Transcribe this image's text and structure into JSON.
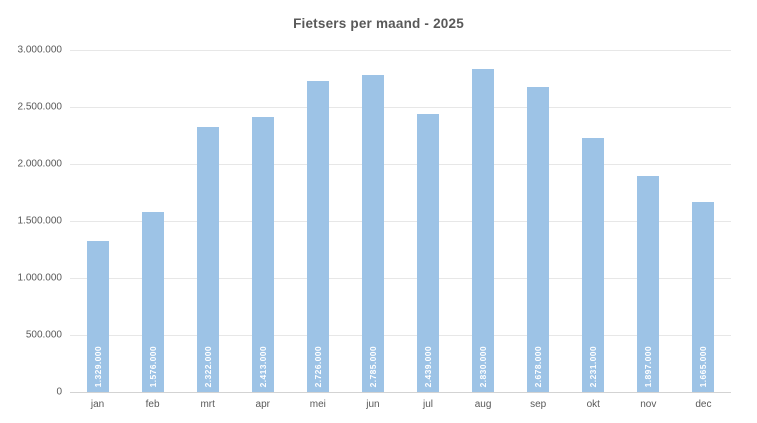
{
  "title": "Fietsers per maand - 2025",
  "chart_data": {
    "type": "bar",
    "title": "Fietsers per maand - 2025",
    "categories": [
      "jan",
      "feb",
      "mrt",
      "apr",
      "mei",
      "jun",
      "jul",
      "aug",
      "sep",
      "okt",
      "nov",
      "dec"
    ],
    "values": [
      1329000,
      1576000,
      2322000,
      2413000,
      2726000,
      2785000,
      2439000,
      2830000,
      2678000,
      2231000,
      1897000,
      1665000
    ],
    "value_labels": [
      "1.329.000",
      "1.576.000",
      "2.322.000",
      "2.413.000",
      "2.726.000",
      "2.785.000",
      "2.439.000",
      "2.830.000",
      "2.678.000",
      "2.231.000",
      "1.897.000",
      "1.665.000"
    ],
    "xlabel": "",
    "ylabel": "",
    "ylim": [
      0,
      3000000
    ],
    "ytick_step": 500000,
    "ytick_labels_top_down": [
      "3.000.000",
      "2.500.000",
      "2.000.000",
      "1.500.000",
      "1.000.000",
      "500.000",
      "0"
    ],
    "grid": true,
    "legend": false,
    "data_label_position": "inside-base-rotated"
  },
  "colors": {
    "background": "#FFFFFF",
    "bar_fill": "#9DC3E6",
    "bar_label_text": "#FFFFFF",
    "title_text": "#595959",
    "axis_text": "#595959",
    "gridline": "#E7E7E7",
    "axis_line": "#D3D3D3"
  }
}
